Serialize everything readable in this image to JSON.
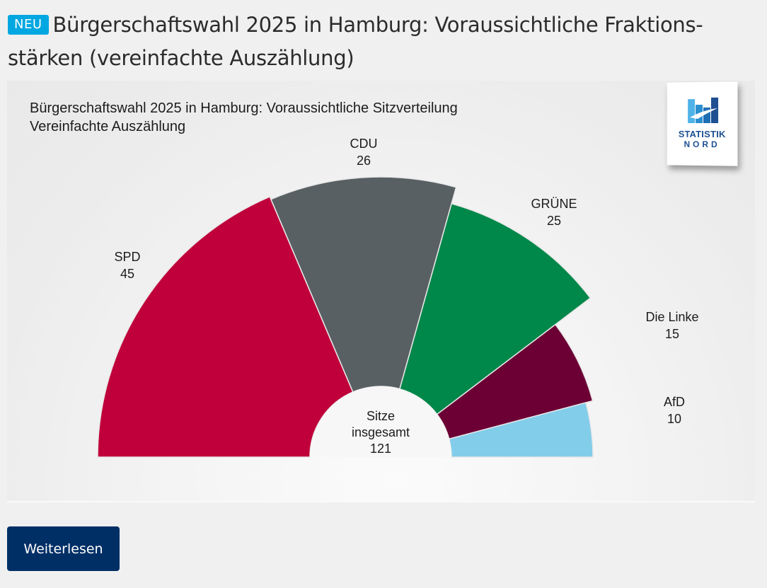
{
  "headline": {
    "badge": "NEU",
    "title": "Bürgerschaftswahl 2025 in Hamburg: Voraussichtliche Fraktions- stärken (vereinfachte Auszählung)"
  },
  "logo": {
    "line1": "STATISTIK",
    "line2": "NORD"
  },
  "chart_data": {
    "type": "pie",
    "variant": "semicircle-parliament",
    "title": "Bürgerschaftswahl 2025 in Hamburg: Voraussichtliche Sitzverteilung",
    "subtitle": "Vereinfachte Auszählung",
    "categories": [
      "SPD",
      "CDU",
      "GRÜNE",
      "Die Linke",
      "AfD"
    ],
    "values": [
      45,
      26,
      25,
      15,
      10
    ],
    "colors": [
      "#c0003a",
      "#596063",
      "#00874a",
      "#6c0035",
      "#82cdea"
    ],
    "center_label": [
      "Sitze",
      "insgesamt",
      "121"
    ],
    "total": 121
  },
  "button": {
    "label": "Weiterlesen"
  }
}
